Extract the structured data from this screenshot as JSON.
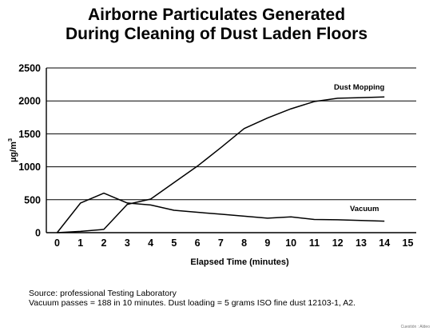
{
  "title_line1": "Airborne Particulates Generated",
  "title_line2": "During Cleaning of Dust Laden Floors",
  "source_line1": "Source: professional Testing Laboratory",
  "source_line2": "Vacuum passes = 188 in 10 minutes. Dust loading = 5 grams ISO fine dust 12103-1, A2.",
  "credit": "Cuestión : Aldeo",
  "chart_data": {
    "type": "line",
    "title": "Airborne Particulates Generated During Cleaning of Dust Laden Floors",
    "xlabel": "Elapsed Time (minutes)",
    "ylabel": "µg/m3",
    "xlim": [
      0,
      15
    ],
    "ylim": [
      0,
      2500
    ],
    "xticks": [
      0,
      1,
      2,
      3,
      4,
      5,
      6,
      7,
      8,
      9,
      10,
      11,
      12,
      13,
      14,
      15
    ],
    "yticks": [
      0,
      500,
      1000,
      1500,
      2000,
      2500
    ],
    "grid": "horizontal",
    "series": [
      {
        "name": "Dust Mopping",
        "x": [
          0,
          1,
          2,
          3,
          4,
          5,
          6,
          7,
          8,
          9,
          10,
          11,
          12,
          13,
          14
        ],
        "y": [
          0,
          20,
          50,
          430,
          510,
          760,
          1010,
          1290,
          1580,
          1740,
          1880,
          1990,
          2040,
          2050,
          2060
        ]
      },
      {
        "name": "Vacuum",
        "x": [
          0,
          1,
          2,
          3,
          4,
          5,
          6,
          7,
          8,
          9,
          10,
          11,
          12,
          13,
          14
        ],
        "y": [
          0,
          450,
          600,
          450,
          420,
          340,
          310,
          280,
          250,
          220,
          240,
          200,
          195,
          185,
          175
        ]
      }
    ]
  }
}
